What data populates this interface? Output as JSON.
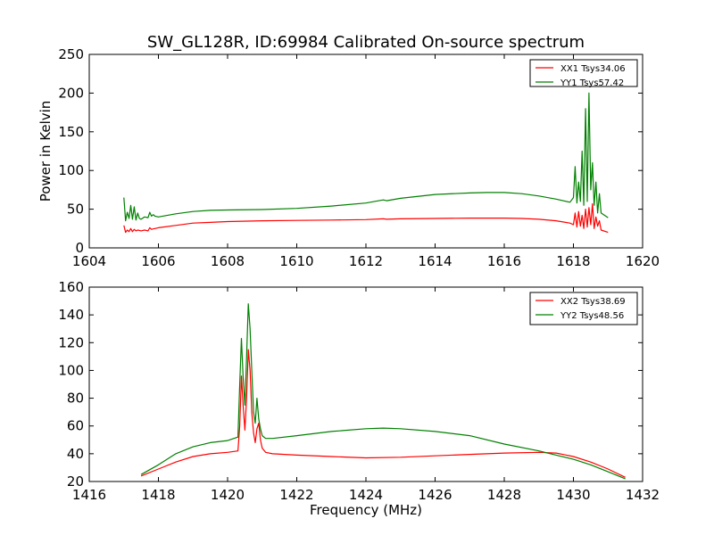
{
  "figure": {
    "title": "SW_GL128R, ID:69984 Calibrated On-source spectrum",
    "xlabel": "Frequency (MHz)"
  },
  "chart_data": [
    {
      "type": "line",
      "title": "SW_GL128R, ID:69984 Calibrated On-source spectrum",
      "xlabel": "",
      "ylabel": "Power in Kelvin",
      "xlim": [
        1604,
        1620
      ],
      "ylim": [
        0,
        250
      ],
      "xticks": [
        "1604",
        "1606",
        "1608",
        "1610",
        "1612",
        "1614",
        "1616",
        "1618",
        "1620"
      ],
      "yticks": [
        "0",
        "50",
        "100",
        "150",
        "200",
        "250"
      ],
      "legend_position": "top-right",
      "grid": false,
      "series": [
        {
          "name": "XX1 Tsys34.06",
          "color": "#ff0000",
          "x": [
            1605.0,
            1605.05,
            1605.1,
            1605.15,
            1605.2,
            1605.25,
            1605.3,
            1605.35,
            1605.4,
            1605.5,
            1605.6,
            1605.7,
            1605.75,
            1605.8,
            1605.9,
            1606.0,
            1606.5,
            1607.0,
            1607.5,
            1608.0,
            1609.0,
            1610.0,
            1611.0,
            1612.0,
            1612.5,
            1612.6,
            1613.0,
            1614.0,
            1615.0,
            1616.0,
            1616.5,
            1617.0,
            1617.5,
            1617.9,
            1618.0,
            1618.05,
            1618.1,
            1618.15,
            1618.2,
            1618.25,
            1618.3,
            1618.35,
            1618.4,
            1618.45,
            1618.5,
            1618.55,
            1618.6,
            1618.65,
            1618.7,
            1618.75,
            1618.8,
            1619.0
          ],
          "y": [
            29,
            20,
            23,
            21,
            25,
            21,
            24,
            22,
            23,
            22,
            23,
            22,
            26,
            24,
            25,
            26,
            29,
            32,
            33,
            34,
            35,
            35.5,
            36,
            36.5,
            37.5,
            37,
            37.5,
            38,
            38.5,
            38.5,
            38,
            37,
            35,
            32,
            30,
            45,
            27,
            47,
            28,
            42,
            25,
            50,
            27,
            52,
            30,
            57,
            25,
            40,
            28,
            35,
            23,
            20
          ]
        },
        {
          "name": "YY1 Tsys57.42",
          "color": "#008000",
          "x": [
            1605.0,
            1605.05,
            1605.1,
            1605.15,
            1605.2,
            1605.25,
            1605.3,
            1605.35,
            1605.4,
            1605.45,
            1605.5,
            1605.6,
            1605.7,
            1605.75,
            1605.8,
            1605.85,
            1605.9,
            1606.0,
            1606.5,
            1607.0,
            1607.5,
            1608.0,
            1609.0,
            1610.0,
            1611.0,
            1612.0,
            1612.5,
            1612.6,
            1613.0,
            1614.0,
            1615.0,
            1615.5,
            1616.0,
            1616.5,
            1617.0,
            1617.5,
            1617.9,
            1618.0,
            1618.05,
            1618.1,
            1618.15,
            1618.2,
            1618.25,
            1618.3,
            1618.35,
            1618.4,
            1618.45,
            1618.5,
            1618.55,
            1618.6,
            1618.65,
            1618.7,
            1618.75,
            1618.8,
            1619.0
          ],
          "y": [
            65,
            35,
            46,
            38,
            55,
            37,
            53,
            36,
            45,
            38,
            37,
            40,
            39,
            46,
            41,
            43,
            41,
            40,
            44,
            47,
            48.5,
            49,
            49.5,
            51,
            54,
            58,
            62,
            61,
            64,
            69,
            71,
            71.5,
            71.5,
            70,
            67,
            63,
            59,
            65,
            105,
            58,
            85,
            60,
            125,
            55,
            180,
            60,
            200,
            75,
            110,
            55,
            85,
            45,
            70,
            45,
            39
          ]
        }
      ]
    },
    {
      "type": "line",
      "title": "",
      "xlabel": "Frequency (MHz)",
      "ylabel": "",
      "xlim": [
        1416,
        1432
      ],
      "ylim": [
        20,
        160
      ],
      "xticks": [
        "1416",
        "1418",
        "1420",
        "1422",
        "1424",
        "1426",
        "1428",
        "1430",
        "1432"
      ],
      "yticks": [
        "20",
        "40",
        "60",
        "80",
        "100",
        "120",
        "140",
        "160"
      ],
      "legend_position": "top-right",
      "grid": false,
      "series": [
        {
          "name": "XX2 Tsys38.69",
          "color": "#ff0000",
          "x": [
            1417.5,
            1418.0,
            1418.5,
            1419.0,
            1419.5,
            1420.0,
            1420.3,
            1420.35,
            1420.4,
            1420.45,
            1420.5,
            1420.55,
            1420.6,
            1420.65,
            1420.7,
            1420.75,
            1420.8,
            1420.85,
            1420.9,
            1420.95,
            1421.0,
            1421.1,
            1421.3,
            1422.0,
            1423.0,
            1424.0,
            1425.0,
            1426.0,
            1427.0,
            1428.0,
            1429.0,
            1429.5,
            1430.0,
            1430.5,
            1431.0,
            1431.5
          ],
          "y": [
            24,
            29,
            34,
            38,
            40,
            41,
            42,
            60,
            96,
            75,
            57,
            80,
            115,
            100,
            70,
            55,
            48,
            58,
            62,
            50,
            44,
            41,
            40,
            39,
            38,
            37,
            37.5,
            38.5,
            39.5,
            40.5,
            41,
            40.5,
            38,
            34,
            29,
            23
          ]
        },
        {
          "name": "YY2 Tsys48.56",
          "color": "#008000",
          "x": [
            1417.5,
            1418.0,
            1418.5,
            1419.0,
            1419.5,
            1420.0,
            1420.3,
            1420.35,
            1420.4,
            1420.45,
            1420.5,
            1420.55,
            1420.6,
            1420.65,
            1420.7,
            1420.75,
            1420.8,
            1420.85,
            1420.9,
            1420.95,
            1421.0,
            1421.1,
            1421.3,
            1422.0,
            1423.0,
            1424.0,
            1424.5,
            1425.0,
            1426.0,
            1427.0,
            1428.0,
            1429.0,
            1429.5,
            1430.0,
            1430.5,
            1431.0,
            1431.5
          ],
          "y": [
            25,
            32,
            40,
            45,
            48,
            49.5,
            52,
            90,
            123,
            95,
            75,
            110,
            148,
            130,
            100,
            70,
            62,
            80,
            65,
            58,
            53,
            51,
            51,
            53,
            56,
            58,
            58.5,
            58,
            56,
            53,
            47,
            42,
            39,
            36,
            32,
            27,
            22
          ]
        }
      ]
    }
  ]
}
